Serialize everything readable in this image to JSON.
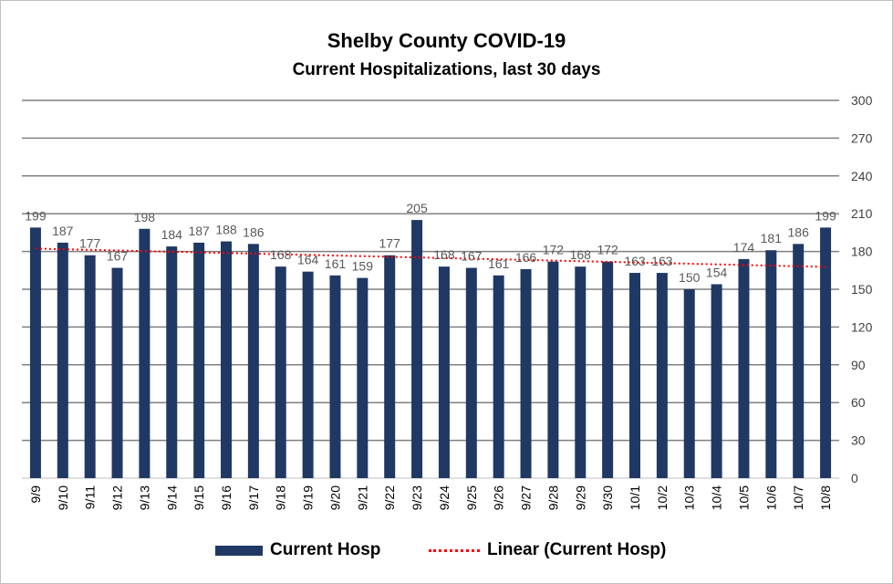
{
  "chart_data": {
    "type": "bar",
    "title": "Shelby County COVID-19",
    "subtitle": "Current Hospitalizations, last 30 days",
    "categories": [
      "9/9",
      "9/10",
      "9/11",
      "9/12",
      "9/13",
      "9/14",
      "9/15",
      "9/16",
      "9/17",
      "9/18",
      "9/19",
      "9/20",
      "9/21",
      "9/22",
      "9/23",
      "9/24",
      "9/25",
      "9/26",
      "9/27",
      "9/28",
      "9/29",
      "9/30",
      "10/1",
      "10/2",
      "10/3",
      "10/4",
      "10/5",
      "10/6",
      "10/7",
      "10/8"
    ],
    "series": [
      {
        "name": "Current Hosp",
        "values": [
          199,
          187,
          177,
          167,
          198,
          184,
          187,
          188,
          186,
          168,
          164,
          161,
          159,
          177,
          205,
          168,
          167,
          161,
          166,
          172,
          168,
          172,
          163,
          163,
          150,
          154,
          174,
          181,
          186,
          199
        ]
      }
    ],
    "trendline": {
      "name": "Linear (Current Hosp)",
      "type": "linear"
    },
    "ylim": [
      0,
      300
    ],
    "yticks": [
      0,
      30,
      60,
      90,
      120,
      150,
      180,
      210,
      240,
      270,
      300
    ],
    "y_axis_side": "right",
    "grid": true,
    "legend": "bottom",
    "colors": {
      "bar": "#203864",
      "trend": "#ff0000",
      "grid": "#808080"
    }
  }
}
